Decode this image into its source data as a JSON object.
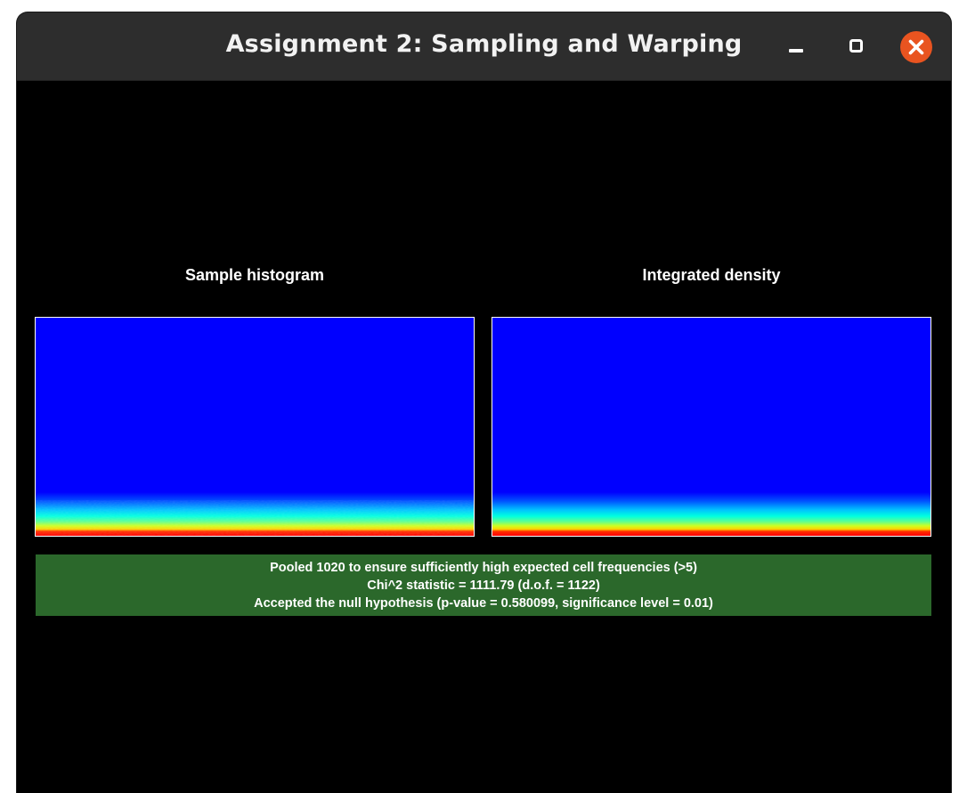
{
  "window": {
    "title": "Assignment 2: Sampling and Warping",
    "controls": [
      "minimize-icon",
      "maximize-icon",
      "close-icon"
    ],
    "close_color": "#e95420"
  },
  "panels": {
    "left": {
      "title": "Sample histogram"
    },
    "right": {
      "title": "Integrated density"
    }
  },
  "heatmap": {
    "colormap": "jet",
    "background_color": "#0000ff",
    "description_rows_from_bottom": [
      "#ff0000",
      "#ffff00",
      "#80ff80",
      "#00ffff",
      "#00a0ff",
      "#0040ff"
    ]
  },
  "result": {
    "status": "accepted",
    "background": "#2b682b",
    "line1": "Pooled 1020 to ensure sufficiently high expected cell frequencies (>5)",
    "line2": "Chi^2 statistic = 1111.79 (d.o.f. = 1122)",
    "line3": "Accepted the null hypothesis (p-value = 0.580099, significance level = 0.01)"
  }
}
